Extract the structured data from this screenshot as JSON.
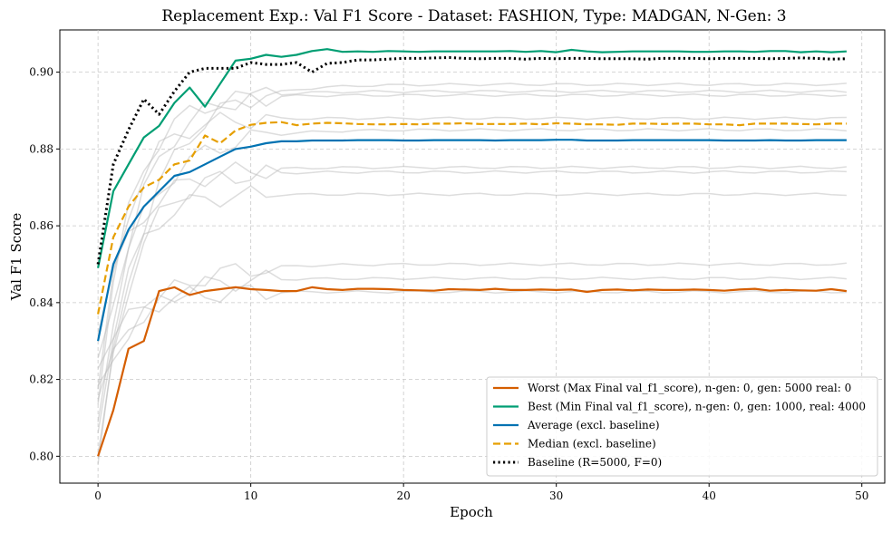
{
  "chart_data": {
    "type": "line",
    "title": "Replacement Exp.: Val F1 Score - Dataset: FASHION, Type: MADGAN, N-Gen: 3",
    "xlabel": "Epoch",
    "ylabel": "Val F1 Score",
    "xlim": [
      -2.5,
      51.5
    ],
    "ylim": [
      0.793,
      0.911
    ],
    "xticks": [
      0,
      10,
      20,
      30,
      40,
      50
    ],
    "xtick_labels": [
      "0",
      "10",
      "20",
      "30",
      "40",
      "50"
    ],
    "yticks": [
      0.8,
      0.82,
      0.84,
      0.86,
      0.88,
      0.9
    ],
    "ytick_labels": [
      "0.80",
      "0.82",
      "0.84",
      "0.86",
      "0.88",
      "0.90"
    ],
    "grid": true,
    "legend_position": "lower-right",
    "x": [
      0,
      1,
      2,
      3,
      4,
      5,
      6,
      7,
      8,
      9,
      10,
      11,
      12,
      13,
      14,
      15,
      16,
      17,
      18,
      19,
      20,
      21,
      22,
      23,
      24,
      25,
      26,
      27,
      28,
      29,
      30,
      31,
      32,
      33,
      34,
      35,
      36,
      37,
      38,
      39,
      40,
      41,
      42,
      43,
      44,
      45,
      46,
      47,
      48,
      49
    ],
    "series": [
      {
        "name": "Worst (Max Final val_f1_score), n-gen: 0, gen: 5000 real: 0",
        "color": "#D55E00",
        "style": "solid",
        "values": [
          0.8,
          0.812,
          0.828,
          0.83,
          0.843,
          0.844,
          0.842,
          0.843,
          0.8435,
          0.844,
          0.8435,
          0.8433,
          0.843,
          0.843,
          0.844,
          0.8435,
          0.8433,
          0.8436,
          0.8436,
          0.8435,
          0.8433,
          0.8432,
          0.8431,
          0.8435,
          0.8434,
          0.8433,
          0.8436,
          0.8433,
          0.8433,
          0.8434,
          0.8433,
          0.8434,
          0.8428,
          0.8433,
          0.8434,
          0.8432,
          0.8434,
          0.8433,
          0.8433,
          0.8434,
          0.8433,
          0.8431,
          0.8434,
          0.8436,
          0.8431,
          0.8433,
          0.8432,
          0.8431,
          0.8435,
          0.843
        ]
      },
      {
        "name": "Best (Min Final val_f1_score), n-gen: 0, gen: 1000, real: 4000",
        "color": "#009E73",
        "style": "solid",
        "values": [
          0.849,
          0.869,
          0.876,
          0.883,
          0.886,
          0.892,
          0.896,
          0.891,
          0.897,
          0.903,
          0.9035,
          0.9045,
          0.904,
          0.9045,
          0.9055,
          0.906,
          0.9053,
          0.9054,
          0.9053,
          0.9055,
          0.9054,
          0.9053,
          0.9054,
          0.9054,
          0.9054,
          0.9054,
          0.9054,
          0.9055,
          0.9053,
          0.9055,
          0.9052,
          0.9058,
          0.9054,
          0.9052,
          0.9053,
          0.9054,
          0.9054,
          0.9054,
          0.9054,
          0.9053,
          0.9053,
          0.9054,
          0.9054,
          0.9053,
          0.9055,
          0.9055,
          0.9052,
          0.9054,
          0.9052,
          0.9054
        ]
      },
      {
        "name": "Average (excl. baseline)",
        "color": "#0072B2",
        "style": "solid",
        "values": [
          0.83,
          0.85,
          0.859,
          0.865,
          0.869,
          0.873,
          0.874,
          0.876,
          0.878,
          0.88,
          0.8806,
          0.8815,
          0.882,
          0.882,
          0.8822,
          0.8822,
          0.8822,
          0.8823,
          0.8823,
          0.8823,
          0.8822,
          0.8822,
          0.8823,
          0.8823,
          0.8823,
          0.8823,
          0.8822,
          0.8823,
          0.8823,
          0.8823,
          0.8824,
          0.8824,
          0.8822,
          0.8822,
          0.8822,
          0.8823,
          0.8823,
          0.8823,
          0.8823,
          0.8823,
          0.8823,
          0.8822,
          0.8822,
          0.8822,
          0.8823,
          0.8822,
          0.8822,
          0.8823,
          0.8823,
          0.8823
        ]
      },
      {
        "name": "Median (excl. baseline)",
        "color": "#E69F00",
        "style": "dashed",
        "values": [
          0.837,
          0.857,
          0.865,
          0.87,
          0.872,
          0.876,
          0.877,
          0.8835,
          0.8815,
          0.8848,
          0.8863,
          0.8868,
          0.887,
          0.8862,
          0.8866,
          0.8868,
          0.8867,
          0.8865,
          0.8864,
          0.8864,
          0.8865,
          0.8864,
          0.8866,
          0.8866,
          0.8867,
          0.8865,
          0.8865,
          0.8865,
          0.8866,
          0.8864,
          0.8867,
          0.8866,
          0.8864,
          0.8864,
          0.8863,
          0.8866,
          0.8866,
          0.8865,
          0.8866,
          0.8866,
          0.8864,
          0.8864,
          0.8862,
          0.8866,
          0.8866,
          0.8866,
          0.8865,
          0.8864,
          0.8866,
          0.8866
        ]
      },
      {
        "name": "Baseline (R=5000, F=0)",
        "color": "#000000",
        "style": "dotted",
        "values": [
          0.85,
          0.876,
          0.885,
          0.893,
          0.889,
          0.895,
          0.9,
          0.901,
          0.901,
          0.901,
          0.9025,
          0.902,
          0.902,
          0.9025,
          0.9,
          0.9023,
          0.9025,
          0.9032,
          0.9032,
          0.9034,
          0.9036,
          0.9036,
          0.9037,
          0.9038,
          0.9036,
          0.9035,
          0.9036,
          0.9036,
          0.9034,
          0.9036,
          0.9035,
          0.9036,
          0.9036,
          0.9035,
          0.9035,
          0.9035,
          0.9034,
          0.9036,
          0.9036,
          0.9036,
          0.9035,
          0.9036,
          0.9036,
          0.9036,
          0.9035,
          0.9036,
          0.9037,
          0.9036,
          0.9034,
          0.9035
        ]
      }
    ],
    "background_series_color": "#bbbbbb",
    "background_series_finals": [
      0.8968,
      0.895,
      0.894,
      0.888,
      0.885,
      0.8752,
      0.874,
      0.8682,
      0.85,
      0.8463,
      0.8428
    ]
  }
}
